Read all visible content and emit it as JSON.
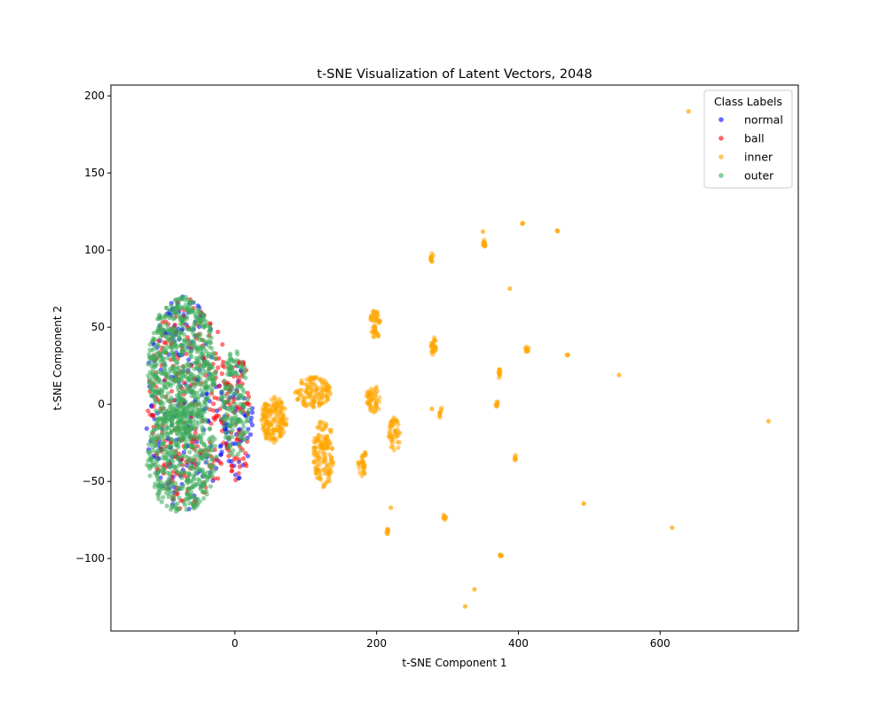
{
  "chart_data": {
    "type": "scatter",
    "title": "t-SNE Visualization of Latent Vectors, 2048",
    "xlabel": "t-SNE Component 1",
    "ylabel": "t-SNE Component 2",
    "xlim": [
      -175,
      795
    ],
    "ylim": [
      -147,
      207
    ],
    "x_ticks": [
      0,
      200,
      400,
      600
    ],
    "y_ticks": [
      -100,
      -50,
      0,
      50,
      100,
      150,
      200
    ],
    "grid": false,
    "legend": {
      "title": "Class Labels",
      "placement": "top-right",
      "entries": [
        "normal",
        "ball",
        "inner",
        "outer"
      ]
    },
    "colors": {
      "normal": "#0000ff",
      "ball": "#ff0000",
      "inner": "#ffa500",
      "outer": "#3cab5a"
    },
    "series": [
      {
        "name": "normal",
        "color": "#0000ff",
        "clusters": [
          {
            "cx": -70,
            "cy": 0,
            "rx": 58,
            "ry": 70,
            "n": 200
          },
          {
            "cx": 5,
            "cy": -10,
            "rx": 20,
            "ry": 40,
            "n": 60
          }
        ]
      },
      {
        "name": "ball",
        "color": "#ff0000",
        "clusters": [
          {
            "cx": -65,
            "cy": 0,
            "rx": 58,
            "ry": 70,
            "n": 260
          },
          {
            "cx": 5,
            "cy": -10,
            "rx": 20,
            "ry": 40,
            "n": 70
          }
        ]
      },
      {
        "name": "inner",
        "color": "#ffa500",
        "clusters": [
          {
            "cx": 55,
            "cy": -10,
            "rx": 18,
            "ry": 15,
            "n": 160
          },
          {
            "cx": 110,
            "cy": 8,
            "rx": 25,
            "ry": 10,
            "n": 120
          },
          {
            "cx": 125,
            "cy": -32,
            "rx": 15,
            "ry": 22,
            "n": 140
          },
          {
            "cx": 195,
            "cy": 3,
            "rx": 10,
            "ry": 10,
            "n": 50
          },
          {
            "cx": 198,
            "cy": 52,
            "rx": 7,
            "ry": 10,
            "n": 45
          },
          {
            "cx": 225,
            "cy": -20,
            "rx": 8,
            "ry": 12,
            "n": 45
          },
          {
            "cx": 180,
            "cy": -38,
            "rx": 6,
            "ry": 9,
            "n": 30
          },
          {
            "cx": 280,
            "cy": 38,
            "rx": 4,
            "ry": 6,
            "n": 25
          },
          {
            "cx": 278,
            "cy": 95,
            "rx": 2,
            "ry": 3,
            "n": 10
          },
          {
            "cx": 290,
            "cy": -5,
            "rx": 2,
            "ry": 4,
            "n": 8
          },
          {
            "cx": 296,
            "cy": -73,
            "rx": 2,
            "ry": 2,
            "n": 8
          },
          {
            "cx": 215,
            "cy": -82,
            "rx": 1.5,
            "ry": 2,
            "n": 8
          },
          {
            "cx": 352,
            "cy": 104,
            "rx": 2,
            "ry": 3,
            "n": 10
          },
          {
            "cx": 373,
            "cy": 20,
            "rx": 2,
            "ry": 3,
            "n": 10
          },
          {
            "cx": 370,
            "cy": 0,
            "rx": 2,
            "ry": 2,
            "n": 8
          },
          {
            "cx": 396,
            "cy": -35,
            "rx": 1.5,
            "ry": 2,
            "n": 6
          },
          {
            "cx": 412,
            "cy": 36,
            "rx": 3,
            "ry": 2,
            "n": 10
          },
          {
            "cx": 375,
            "cy": -98,
            "rx": 2,
            "ry": 1,
            "n": 6
          },
          {
            "cx": 406,
            "cy": 118,
            "rx": 1,
            "ry": 1,
            "n": 3
          },
          {
            "cx": 455,
            "cy": 112,
            "rx": 1,
            "ry": 1,
            "n": 3
          },
          {
            "cx": 469,
            "cy": 32,
            "rx": 1,
            "ry": 1,
            "n": 3
          },
          {
            "cx": 493,
            "cy": -64,
            "rx": 1,
            "ry": 1,
            "n": 2
          }
        ],
        "points": [
          [
            640,
            190
          ],
          [
            542,
            19
          ],
          [
            753,
            -11
          ],
          [
            617,
            -80
          ],
          [
            388,
            75
          ],
          [
            325,
            -131
          ],
          [
            338,
            -120
          ],
          [
            220,
            -67
          ],
          [
            350,
            112
          ],
          [
            278,
            -3
          ]
        ]
      },
      {
        "name": "outer",
        "color": "#3cab5a",
        "clusters": [
          {
            "cx": -75,
            "cy": 25,
            "rx": 48,
            "ry": 45,
            "n": 650
          },
          {
            "cx": -75,
            "cy": -35,
            "rx": 50,
            "ry": 35,
            "n": 450
          },
          {
            "cx": 0,
            "cy": 0,
            "rx": 20,
            "ry": 35,
            "n": 160
          }
        ]
      }
    ]
  }
}
